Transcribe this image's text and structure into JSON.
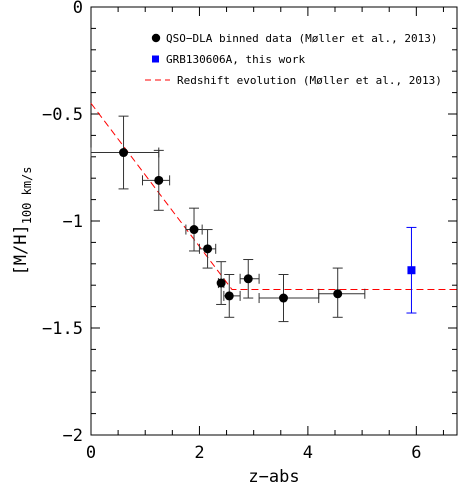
{
  "chart_data": {
    "type": "scatter",
    "xlabel": "z−abs",
    "ylabel_main": "[M/H]",
    "ylabel_sub": "100 km/s",
    "xlim": [
      0,
      6.75
    ],
    "ylim": [
      -2,
      0
    ],
    "xticks": [
      0,
      2,
      4,
      6
    ],
    "xtick_labels": [
      "0",
      "2",
      "4",
      "6"
    ],
    "yticks": [
      0,
      -0.5,
      -1,
      -1.5,
      -2
    ],
    "ytick_labels": [
      "0",
      "−0.5",
      "−1",
      "−1.5",
      "−2"
    ],
    "grid": false,
    "legend_position": "top-right",
    "series": [
      {
        "name": "QSO−DLA binned data (Møller et al., 2013)",
        "kind": "points-with-errors",
        "marker": "circle",
        "color": "#000000",
        "points": [
          {
            "x": 0.6,
            "y": -0.68,
            "xlo": 0.0,
            "xhi": 1.25,
            "ylo": -0.85,
            "yhi": -0.51
          },
          {
            "x": 1.25,
            "y": -0.81,
            "xlo": 0.95,
            "xhi": 1.45,
            "ylo": -0.95,
            "yhi": -0.67
          },
          {
            "x": 1.9,
            "y": -1.04,
            "xlo": 1.75,
            "xhi": 2.05,
            "ylo": -1.14,
            "yhi": -0.94
          },
          {
            "x": 2.15,
            "y": -1.13,
            "xlo": 2.0,
            "xhi": 2.3,
            "ylo": -1.22,
            "yhi": -1.04
          },
          {
            "x": 2.4,
            "y": -1.29,
            "xlo": 2.35,
            "xhi": 2.45,
            "ylo": -1.39,
            "yhi": -1.19
          },
          {
            "x": 2.55,
            "y": -1.35,
            "xlo": 2.45,
            "xhi": 2.75,
            "ylo": -1.45,
            "yhi": -1.25
          },
          {
            "x": 2.9,
            "y": -1.27,
            "xlo": 2.75,
            "xhi": 3.1,
            "ylo": -1.36,
            "yhi": -1.18
          },
          {
            "x": 3.55,
            "y": -1.36,
            "xlo": 3.1,
            "xhi": 4.2,
            "ylo": -1.47,
            "yhi": -1.25
          },
          {
            "x": 4.55,
            "y": -1.34,
            "xlo": 4.2,
            "xhi": 5.05,
            "ylo": -1.45,
            "yhi": -1.22
          }
        ]
      },
      {
        "name": "GRB130606A, this work",
        "kind": "points-with-errors",
        "marker": "square",
        "color": "#0000ff",
        "points": [
          {
            "x": 5.91,
            "y": -1.23,
            "ylo": -1.43,
            "yhi": -1.03
          }
        ]
      },
      {
        "name": "Redshift evolution (Møller et al., 2013)",
        "kind": "dashed-line",
        "color": "#ff0000",
        "points": [
          {
            "x": 0.0,
            "y": -0.45
          },
          {
            "x": 2.6,
            "y": -1.32
          },
          {
            "x": 6.75,
            "y": -1.32
          }
        ]
      }
    ]
  }
}
